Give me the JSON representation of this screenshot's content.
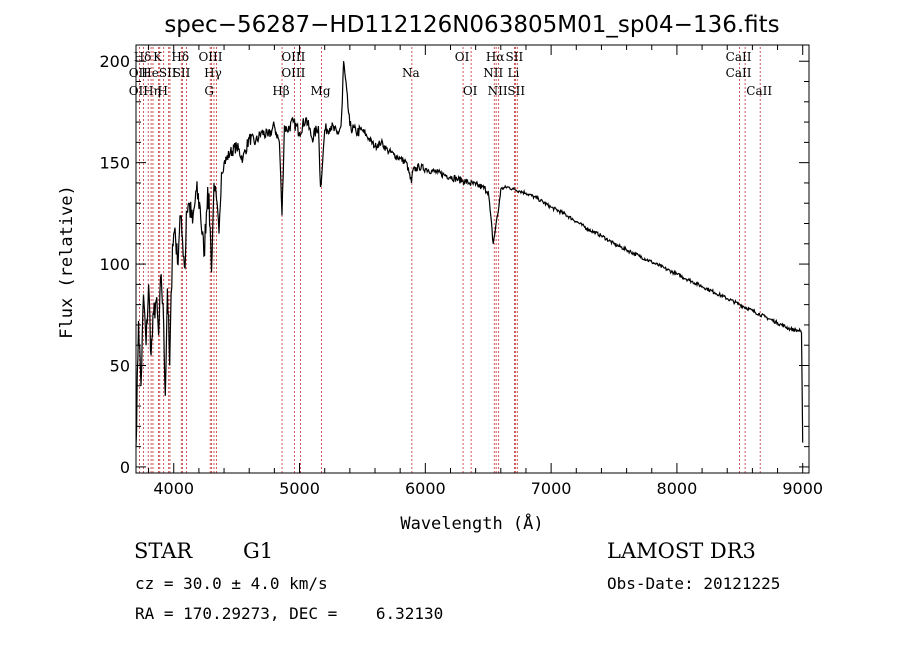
{
  "chart_data": {
    "type": "line",
    "title": "spec−56287−HD112126N063805M01_sp04−136.fits",
    "xlabel": "Wavelength (Å)",
    "ylabel": "Flux (relative)",
    "xlim": [
      3700,
      9050
    ],
    "ylim": [
      -3,
      208
    ],
    "xticks": [
      4000,
      5000,
      6000,
      7000,
      8000,
      9000
    ],
    "yticks": [
      0,
      50,
      100,
      150,
      200
    ],
    "grid": false,
    "series": [
      {
        "name": "spectrum",
        "x": [
          3700,
          3720,
          3740,
          3760,
          3780,
          3800,
          3820,
          3840,
          3860,
          3880,
          3900,
          3920,
          3933,
          3950,
          3968,
          3990,
          4010,
          4030,
          4050,
          4070,
          4090,
          4101,
          4120,
          4150,
          4180,
          4210,
          4240,
          4270,
          4290,
          4300,
          4320,
          4340,
          4360,
          4380,
          4400,
          4450,
          4500,
          4550,
          4600,
          4650,
          4700,
          4750,
          4800,
          4840,
          4861,
          4880,
          4900,
          4950,
          5000,
          5050,
          5100,
          5150,
          5167,
          5183,
          5200,
          5250,
          5300,
          5330,
          5340,
          5350,
          5400,
          5450,
          5500,
          5550,
          5600,
          5650,
          5700,
          5750,
          5800,
          5850,
          5890,
          5900,
          5950,
          6000,
          6050,
          6100,
          6150,
          6200,
          6250,
          6300,
          6350,
          6400,
          6450,
          6500,
          6540,
          6563,
          6580,
          6600,
          6650,
          6700,
          6750,
          6800,
          6900,
          7000,
          7100,
          7200,
          7300,
          7400,
          7500,
          7600,
          7700,
          7800,
          7900,
          8000,
          8100,
          8200,
          8300,
          8400,
          8500,
          8600,
          8700,
          8800,
          8900,
          8980,
          8990,
          9000
        ],
        "y": [
          10,
          72,
          40,
          85,
          60,
          90,
          55,
          75,
          82,
          65,
          95,
          70,
          35,
          88,
          50,
          110,
          118,
          100,
          124,
          112,
          98,
          126,
          130,
          120,
          136,
          128,
          104,
          138,
          118,
          96,
          140,
          132,
          115,
          145,
          150,
          155,
          158,
          152,
          162,
          160,
          165,
          163,
          168,
          160,
          124,
          168,
          166,
          170,
          165,
          172,
          162,
          168,
          138,
          150,
          166,
          168,
          164,
          168,
          180,
          200,
          168,
          165,
          166,
          162,
          158,
          160,
          156,
          154,
          152,
          150,
          140,
          146,
          148,
          147,
          146,
          145,
          144,
          143,
          142,
          141,
          140,
          139,
          138,
          136,
          110,
          120,
          126,
          137,
          138,
          137,
          136,
          135,
          132,
          128,
          125,
          121,
          117,
          114,
          110,
          107,
          104,
          101,
          98,
          95,
          92,
          89,
          86,
          83,
          80,
          77,
          74,
          71,
          68,
          67,
          66,
          12
        ]
      }
    ],
    "lines": [
      {
        "name": "Hδ",
        "wl": 3760,
        "row": 1
      },
      {
        "name": "OII",
        "wl": 3727,
        "row": 2
      },
      {
        "name": "OII",
        "wl": 3727,
        "row": 3
      },
      {
        "name": "He",
        "wl": 3820,
        "row": 2
      },
      {
        "name": "Hη",
        "wl": 3835,
        "row": 3
      },
      {
        "name": "K",
        "wl": 3880,
        "row": 1
      },
      {
        "name": "H",
        "wl": 3920,
        "row": 3
      },
      {
        "name": "SII",
        "wl": 3960,
        "row": 2
      },
      {
        "name": "Hδ",
        "wl": 4060,
        "row": 1
      },
      {
        "name": "SII",
        "wl": 4070,
        "row": 2
      },
      {
        "name": "OIII",
        "wl": 4300,
        "row": 1
      },
      {
        "name": "Hγ",
        "wl": 4320,
        "row": 2
      },
      {
        "name": "G",
        "wl": 4290,
        "row": 3
      },
      {
        "name": "Hβ",
        "wl": 4861,
        "row": 3
      },
      {
        "name": "OIII",
        "wl": 4959,
        "row": 1
      },
      {
        "name": "OIII",
        "wl": 4959,
        "row": 2
      },
      {
        "name": "Mg",
        "wl": 5175,
        "row": 3
      },
      {
        "name": "Na",
        "wl": 5893,
        "row": 2
      },
      {
        "name": "OI",
        "wl": 6300,
        "row": 1
      },
      {
        "name": "OI",
        "wl": 6364,
        "row": 3
      },
      {
        "name": "Hα",
        "wl": 6563,
        "row": 1
      },
      {
        "name": "NII",
        "wl": 6548,
        "row": 2
      },
      {
        "name": "NII",
        "wl": 6583,
        "row": 3
      },
      {
        "name": "SII",
        "wl": 6716,
        "row": 1
      },
      {
        "name": "Li",
        "wl": 6708,
        "row": 2
      },
      {
        "name": "SII",
        "wl": 6731,
        "row": 3
      },
      {
        "name": "CaII",
        "wl": 8498,
        "row": 1
      },
      {
        "name": "CaII",
        "wl": 8498,
        "row": 2
      },
      {
        "name": "CaII",
        "wl": 8662,
        "row": 3
      }
    ],
    "extra_line_wl": [
      3797,
      3889,
      3970,
      4101,
      4340,
      5007,
      6548,
      6583,
      8542
    ]
  },
  "info": {
    "object_class": "STAR",
    "subclass": "G1",
    "survey": "LAMOST DR3",
    "cz": "cz = 30.0 ± 4.0 km/s",
    "obs_date": "Obs-Date: 20121225",
    "radec": "RA = 170.29273, DEC =    6.32130"
  },
  "colors": {
    "spectrum": "#000000",
    "line_markers": "#c03030",
    "axes": "#000000"
  }
}
